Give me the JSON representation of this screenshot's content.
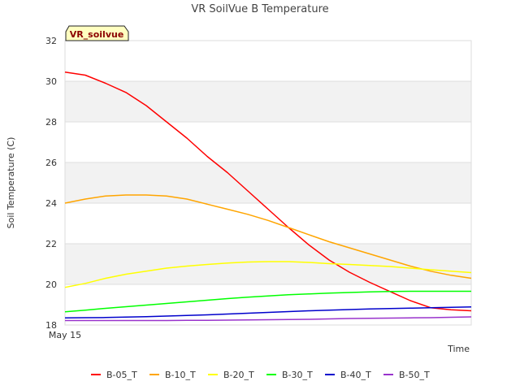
{
  "chart_data": {
    "type": "line",
    "title": "VR SoilVue B Temperature",
    "xlabel": "Time",
    "ylabel": "Soil Temperature (C)",
    "ylim": [
      18,
      32
    ],
    "yticks": [
      18,
      20,
      22,
      24,
      26,
      28,
      30,
      32
    ],
    "x": [
      0,
      0.5,
      1,
      1.5,
      2,
      2.5,
      3,
      3.5,
      4,
      4.5,
      5,
      5.5,
      6,
      6.5,
      7,
      7.5,
      8,
      8.5,
      9,
      9.5,
      10
    ],
    "xlim": [
      0,
      10
    ],
    "xtick_label": "May 15",
    "badge": "VR_soilvue",
    "grid": true,
    "legend_position": "bottom",
    "series": [
      {
        "name": "B-05_T",
        "color": "#ff0000",
        "values": [
          30.45,
          30.3,
          29.9,
          29.45,
          28.8,
          28.0,
          27.2,
          26.3,
          25.5,
          24.6,
          23.7,
          22.8,
          21.95,
          21.2,
          20.6,
          20.1,
          19.65,
          19.2,
          18.85,
          18.75,
          18.7
        ]
      },
      {
        "name": "B-10_T",
        "color": "#ffa500",
        "values": [
          24.0,
          24.2,
          24.35,
          24.4,
          24.4,
          24.35,
          24.2,
          23.95,
          23.7,
          23.45,
          23.15,
          22.8,
          22.45,
          22.1,
          21.8,
          21.5,
          21.2,
          20.9,
          20.65,
          20.45,
          20.3
        ]
      },
      {
        "name": "B-20_T",
        "color": "#ffff00",
        "values": [
          19.85,
          20.05,
          20.3,
          20.5,
          20.65,
          20.8,
          20.9,
          20.98,
          21.05,
          21.1,
          21.12,
          21.12,
          21.08,
          21.02,
          20.98,
          20.93,
          20.88,
          20.8,
          20.72,
          20.65,
          20.58
        ]
      },
      {
        "name": "B-30_T",
        "color": "#00ff00",
        "values": [
          18.65,
          18.73,
          18.82,
          18.9,
          18.98,
          19.06,
          19.14,
          19.22,
          19.3,
          19.37,
          19.43,
          19.49,
          19.53,
          19.57,
          19.6,
          19.63,
          19.65,
          19.66,
          19.66,
          19.66,
          19.66
        ]
      },
      {
        "name": "B-40_T",
        "color": "#0000cc",
        "values": [
          18.35,
          18.36,
          18.37,
          18.39,
          18.41,
          18.44,
          18.47,
          18.5,
          18.54,
          18.58,
          18.62,
          18.66,
          18.7,
          18.73,
          18.76,
          18.79,
          18.81,
          18.83,
          18.85,
          18.87,
          18.89
        ]
      },
      {
        "name": "B-50_T",
        "color": "#9933cc",
        "values": [
          18.22,
          18.22,
          18.22,
          18.22,
          18.22,
          18.22,
          18.23,
          18.23,
          18.24,
          18.25,
          18.26,
          18.27,
          18.28,
          18.3,
          18.32,
          18.33,
          18.34,
          18.35,
          18.36,
          18.38,
          18.4
        ]
      }
    ]
  }
}
